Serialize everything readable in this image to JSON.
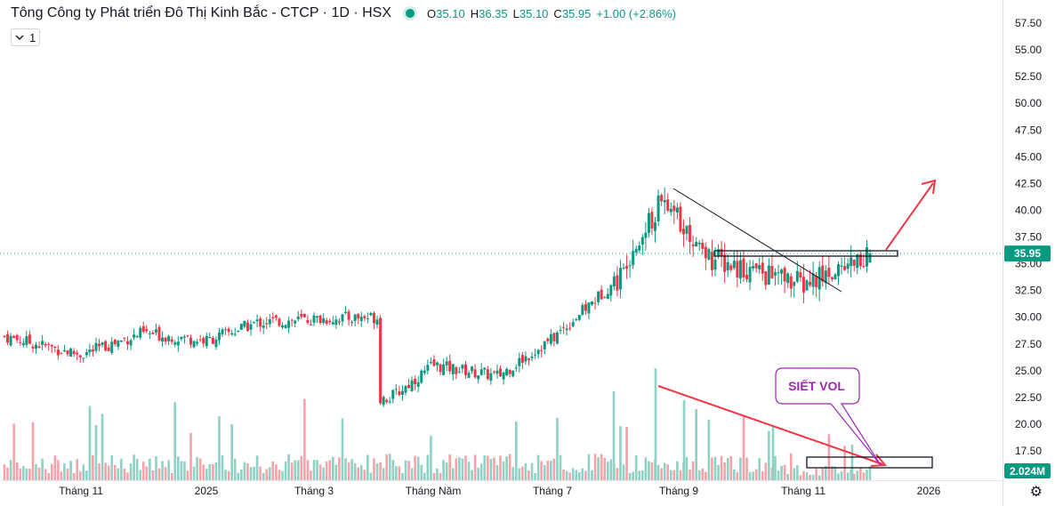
{
  "header": {
    "title": "Tông Công ty Phát triển Đô Thị Kinh Bắc - CTCP · 1D · HSX",
    "o_label": "O",
    "o": "35.10",
    "h_label": "H",
    "h": "36.35",
    "l_label": "L",
    "l": "35.10",
    "c_label": "C",
    "c": "35.95",
    "change": "+1.00 (+2.86%)"
  },
  "interval_button": {
    "label": "1"
  },
  "price_axis": {
    "ticks": [
      "57.50",
      "55.00",
      "52.50",
      "50.00",
      "47.50",
      "45.00",
      "42.50",
      "40.00",
      "37.50",
      "35.00",
      "32.50",
      "30.00",
      "27.50",
      "25.00",
      "22.50",
      "20.00",
      "17.50"
    ]
  },
  "time_axis": {
    "labels": [
      "Tháng 11",
      "2025",
      "Tháng 3",
      "Tháng Năm",
      "Tháng 7",
      "Tháng 9",
      "Tháng 11",
      "2026"
    ]
  },
  "last_price": {
    "label": "35.95",
    "color": "#089981"
  },
  "volume_label": {
    "label": "2.024M",
    "color": "#089981"
  },
  "annotation": {
    "text": "SIẾT VOL",
    "color": "#9c27b0"
  },
  "colors": {
    "up": "#089981",
    "down": "#f23645",
    "vol_up": "#8fd1c4",
    "vol_down": "#f5a3aa",
    "arrow": "#f23645"
  },
  "chart_data": {
    "type": "candlestick",
    "title": "Tông Công ty Phát triển Đô Thị Kinh Bắc - CTCP · 1D · HSX",
    "ylim": [
      15.0,
      58.5
    ],
    "x_labels": [
      "Tháng 11",
      "2025",
      "Tháng 3",
      "Tháng Năm",
      "Tháng 7",
      "Tháng 9",
      "Tháng 11",
      "2026"
    ],
    "approx_close_path": [
      {
        "t": "Tháng 10",
        "close": 28.2
      },
      {
        "t": "Tháng 11",
        "close": 26.5
      },
      {
        "t": "Tháng 12",
        "close": 28.5
      },
      {
        "t": "2025",
        "close": 27.8
      },
      {
        "t": "Tháng 2",
        "close": 29.5
      },
      {
        "t": "Tháng 3",
        "close": 29.8
      },
      {
        "t": "Tháng 4",
        "close": 30.0
      },
      {
        "t": "Tháng 4 (gap)",
        "close": 22.5
      },
      {
        "t": "Tháng Năm",
        "close": 25.5
      },
      {
        "t": "Tháng 6",
        "close": 24.5
      },
      {
        "t": "Tháng 7",
        "close": 28.0
      },
      {
        "t": "Tháng 8",
        "close": 34.0
      },
      {
        "t": "Tháng 9",
        "close": 41.0
      },
      {
        "t": "Tháng 10",
        "close": 35.5
      },
      {
        "t": "Tháng 11",
        "close": 33.0
      },
      {
        "t": "Tháng 12",
        "close": 35.95
      }
    ],
    "last": {
      "open": 35.1,
      "high": 36.35,
      "low": 35.1,
      "close": 35.95,
      "change": 1.0,
      "change_pct": 2.86
    },
    "volume_last": "2.024M"
  }
}
